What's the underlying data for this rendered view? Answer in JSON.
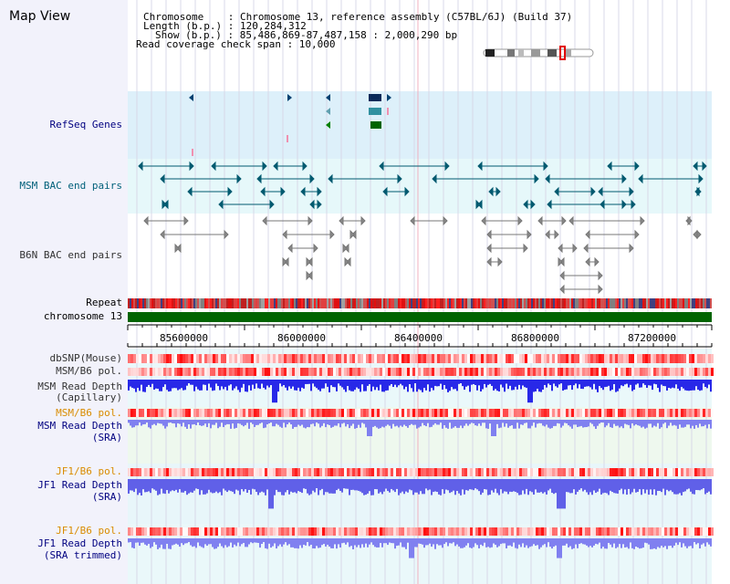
{
  "title": "Map View",
  "info": {
    "chromosome_line": "Chromosome    : Chromosome 13, reference assembly (C57BL/6J) (Build 37)",
    "length_line": "Length (b.p.) : 120,284,312",
    "show_line": "Show (b.p.) : 85,486,869-87,487,158 : 2,000,290 bp",
    "span_line": "Read coverage check span : 10,000"
  },
  "tracks": {
    "refseq": "RefSeq Genes",
    "msm_bac": "MSM BAC end pairs",
    "b6n_bac": "B6N BAC end pairs",
    "repeat": "Repeat",
    "chromosome": "chromosome 13",
    "dbsnp": "dbSNP(Mouse)",
    "msm_b6_pol": "MSM/B6 pol.",
    "msm_depth_cap_1": "MSM Read Depth",
    "msm_depth_cap_2": "(Capillary)",
    "msm_b6_pol_2": "MSM/B6 pol.",
    "msm_depth_sra_1": "MSM Read Depth",
    "msm_depth_sra_2": "(SRA)",
    "jf1_b6_pol": "JF1/B6 pol.",
    "jf1_depth_sra_1": "JF1 Read Depth",
    "jf1_depth_sra_2": "(SRA)",
    "jf1_b6_pol_2": "JF1/B6 pol.",
    "jf1_depth_trim_1": "JF1 Read Depth",
    "jf1_depth_trim_2": "(SRA trimmed)"
  },
  "axis": {
    "ticks": [
      "85600000",
      "86000000",
      "86400000",
      "86800000",
      "87200000"
    ]
  },
  "colors": {
    "refseq_bg": "#ddf0fa",
    "msm_bg": "#e6f8fa",
    "chromosome": "#006400",
    "snp_red": "#e8000a",
    "depth_blue": "#3030e8",
    "depth_light": "#8c8cf0"
  }
}
